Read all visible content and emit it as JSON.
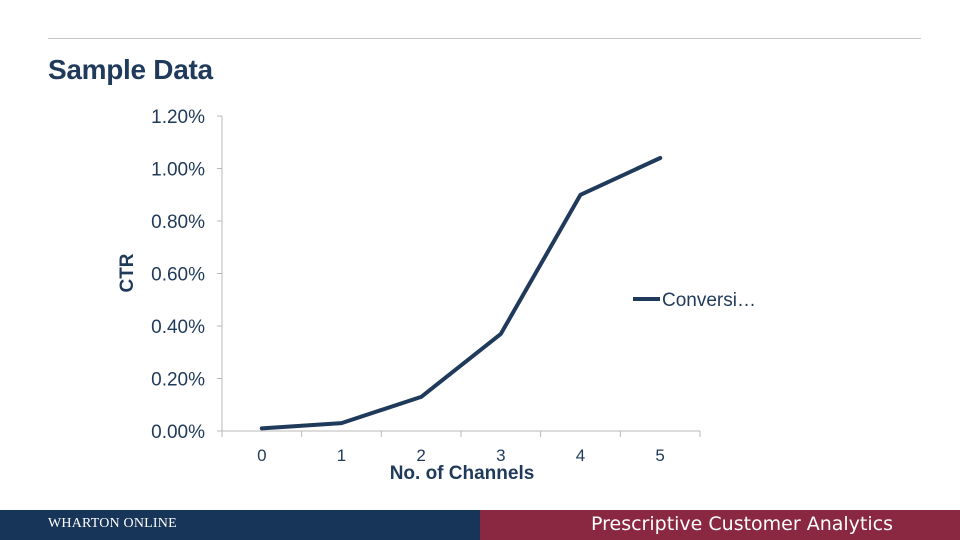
{
  "slide": {
    "title": "Sample Data"
  },
  "footer": {
    "brand": "WHARTON ONLINE",
    "course": "Prescriptive Customer Analytics",
    "left_color": "#173558",
    "right_color": "#8a2741"
  },
  "chart_data": {
    "type": "line",
    "x": [
      0,
      1,
      2,
      3,
      4,
      5
    ],
    "categories": [
      "0",
      "1",
      "2",
      "3",
      "4",
      "5"
    ],
    "series": [
      {
        "name": "Conversi…",
        "values": [
          0.0001,
          0.0003,
          0.0013,
          0.0037,
          0.009,
          0.0104
        ],
        "color": "#1f3a5a"
      }
    ],
    "xlabel": "No. of Channels",
    "ylabel": "CTR",
    "ylim": [
      0,
      0.012
    ],
    "yticks": [
      "0.00%",
      "0.20%",
      "0.40%",
      "0.60%",
      "0.80%",
      "1.00%",
      "1.20%"
    ],
    "grid": false,
    "legend": "right"
  }
}
